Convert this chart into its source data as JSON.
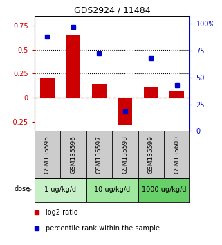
{
  "title": "GDS2924 / 11484",
  "samples": [
    "GSM135595",
    "GSM135596",
    "GSM135597",
    "GSM135598",
    "GSM135599",
    "GSM135600"
  ],
  "log2_ratio": [
    0.205,
    0.645,
    0.135,
    -0.28,
    0.105,
    0.07
  ],
  "percentile_rank": [
    88,
    97,
    72,
    18,
    68,
    43
  ],
  "bar_color": "#cc0000",
  "dot_color": "#0000cc",
  "ylim_left": [
    -0.35,
    0.85
  ],
  "ylim_right": [
    0,
    107
  ],
  "yticks_left": [
    -0.25,
    0,
    0.25,
    0.5,
    0.75
  ],
  "yticks_right": [
    0,
    25,
    50,
    75,
    100
  ],
  "hlines": [
    0.5,
    0.25
  ],
  "hline_zero": 0,
  "dose_groups": [
    {
      "label": "1 ug/kg/d",
      "indices": [
        0,
        1
      ],
      "color": "#c8f0c8"
    },
    {
      "label": "10 ug/kg/d",
      "indices": [
        2,
        3
      ],
      "color": "#a0e8a0"
    },
    {
      "label": "1000 ug/kg/d",
      "indices": [
        4,
        5
      ],
      "color": "#68d068"
    }
  ],
  "dose_label": "dose",
  "legend_red": "log2 ratio",
  "legend_blue": "percentile rank within the sample",
  "sample_bg_color": "#cccccc",
  "bar_zero_color": "#cc4444"
}
